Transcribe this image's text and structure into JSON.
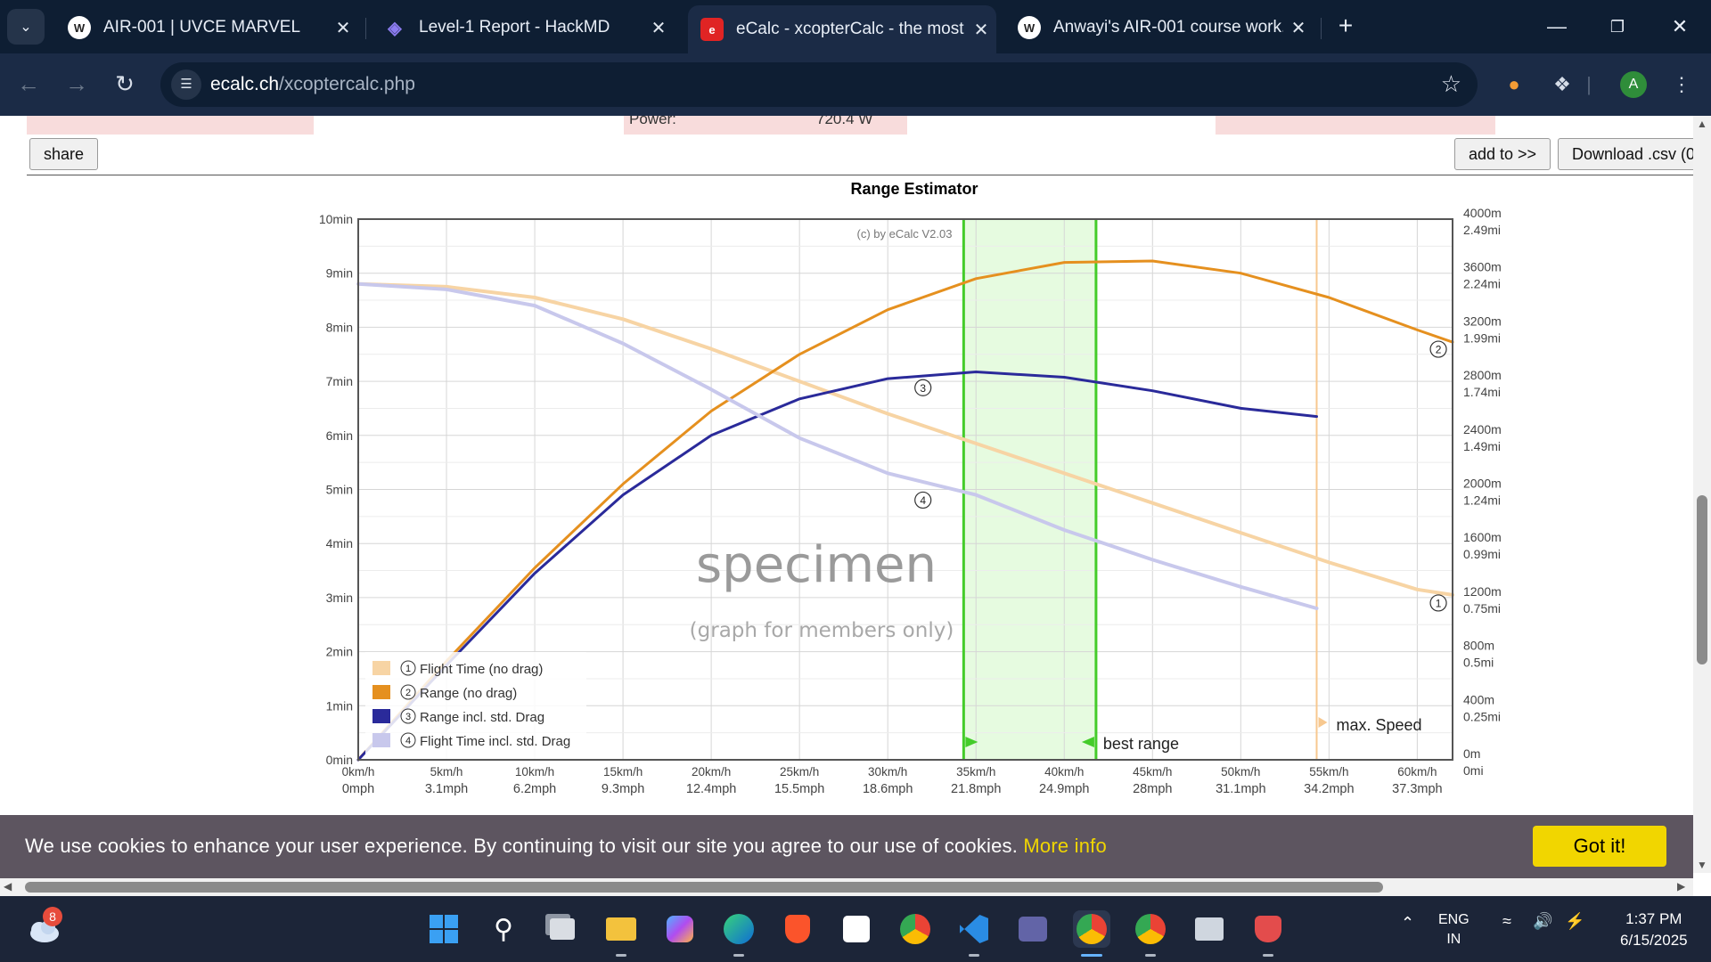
{
  "browser": {
    "tabs": [
      {
        "title": "AIR-001 | UVCE MARVEL",
        "active": false
      },
      {
        "title": "Level-1 Report - HackMD",
        "active": false
      },
      {
        "title": "eCalc - xcopterCalc - the most r",
        "active": true
      },
      {
        "title": "Anwayi's AIR-001 course work.",
        "active": false
      }
    ],
    "url_domain": "ecalc.ch",
    "url_path": "/xcoptercalc.php",
    "profile_initial": "A"
  },
  "page": {
    "power_label": "Power:",
    "power_value": "720.4 W",
    "share_label": "share",
    "add_to_label": "add to >>",
    "download_label": "Download .csv (0",
    "cookie_message": "We use cookies to enhance your user experience. By continuing to visit our site you agree to our use of cookies.",
    "cookie_more": "More info",
    "cookie_button": "Got it!"
  },
  "chart_data": {
    "type": "line",
    "title": "Range Estimator",
    "copyright": "(c) by eCalc  V2.03",
    "watermark": "specimen",
    "watermark_sub": "(graph for members only)",
    "x_ticks": [
      {
        "kmh": "0km/h",
        "mph": "0mph"
      },
      {
        "kmh": "5km/h",
        "mph": "3.1mph"
      },
      {
        "kmh": "10km/h",
        "mph": "6.2mph"
      },
      {
        "kmh": "15km/h",
        "mph": "9.3mph"
      },
      {
        "kmh": "20km/h",
        "mph": "12.4mph"
      },
      {
        "kmh": "25km/h",
        "mph": "15.5mph"
      },
      {
        "kmh": "30km/h",
        "mph": "18.6mph"
      },
      {
        "kmh": "35km/h",
        "mph": "21.8mph"
      },
      {
        "kmh": "40km/h",
        "mph": "24.9mph"
      },
      {
        "kmh": "45km/h",
        "mph": "28mph"
      },
      {
        "kmh": "50km/h",
        "mph": "31.1mph"
      },
      {
        "kmh": "55km/h",
        "mph": "34.2mph"
      },
      {
        "kmh": "60km/h",
        "mph": "37.3mph"
      }
    ],
    "y_left_ticks": [
      "0min",
      "1min",
      "2min",
      "3min",
      "4min",
      "5min",
      "6min",
      "7min",
      "8min",
      "9min",
      "10min"
    ],
    "y_right_ticks": [
      {
        "m": "0m",
        "mi": "0mi"
      },
      {
        "m": "400m",
        "mi": "0.25mi"
      },
      {
        "m": "800m",
        "mi": "0.5mi"
      },
      {
        "m": "1200m",
        "mi": "0.75mi"
      },
      {
        "m": "1600m",
        "mi": "0.99mi"
      },
      {
        "m": "2000m",
        "mi": "1.24mi"
      },
      {
        "m": "2400m",
        "mi": "1.49mi"
      },
      {
        "m": "2800m",
        "mi": "1.74mi"
      },
      {
        "m": "3200m",
        "mi": "1.99mi"
      },
      {
        "m": "3600m",
        "mi": "2.24mi"
      },
      {
        "m": "4000m",
        "mi": "2.49mi"
      }
    ],
    "xlim": [
      0,
      62
    ],
    "ylim_min": [
      0,
      10
    ],
    "ylim_m": [
      0,
      4000
    ],
    "best_range_kmh": [
      34.3,
      41.8
    ],
    "max_speed_kmh": 54.3,
    "best_range_label": "best range",
    "max_speed_label": "max. Speed",
    "series": [
      {
        "name": "Flight Time (no drag)",
        "marker": "1",
        "axis": "min",
        "color": "#f7d4a4",
        "x": [
          0,
          5,
          10,
          15,
          20,
          25,
          30,
          35,
          40,
          45,
          50,
          55,
          60,
          62
        ],
        "values": [
          8.8,
          8.75,
          8.55,
          8.15,
          7.6,
          7.0,
          6.4,
          5.85,
          5.3,
          4.75,
          4.2,
          3.65,
          3.15,
          3.05
        ]
      },
      {
        "name": "Range (no drag)",
        "marker": "2",
        "axis": "m",
        "color": "#e5901f",
        "x": [
          0,
          5,
          10,
          15,
          20,
          25,
          30,
          35,
          40,
          45,
          50,
          55,
          60,
          62
        ],
        "values": [
          0,
          730,
          1420,
          2040,
          2580,
          3000,
          3330,
          3560,
          3680,
          3690,
          3600,
          3420,
          3180,
          3090
        ]
      },
      {
        "name": "Range incl. std. Drag",
        "marker": "3",
        "axis": "m",
        "color": "#2a2a9a",
        "x": [
          0,
          5,
          10,
          15,
          20,
          25,
          30,
          35,
          40,
          45,
          50,
          54.3
        ],
        "values": [
          0,
          700,
          1380,
          1960,
          2400,
          2670,
          2820,
          2870,
          2830,
          2730,
          2600,
          2540
        ]
      },
      {
        "name": "Flight Time incl. std. Drag",
        "marker": "4",
        "axis": "min",
        "color": "#c8c8ec",
        "x": [
          0,
          5,
          10,
          15,
          20,
          25,
          30,
          35,
          40,
          45,
          50,
          54.3
        ],
        "values": [
          8.8,
          8.7,
          8.4,
          7.7,
          6.85,
          5.95,
          5.3,
          4.9,
          4.25,
          3.7,
          3.2,
          2.8
        ]
      }
    ]
  }
}
